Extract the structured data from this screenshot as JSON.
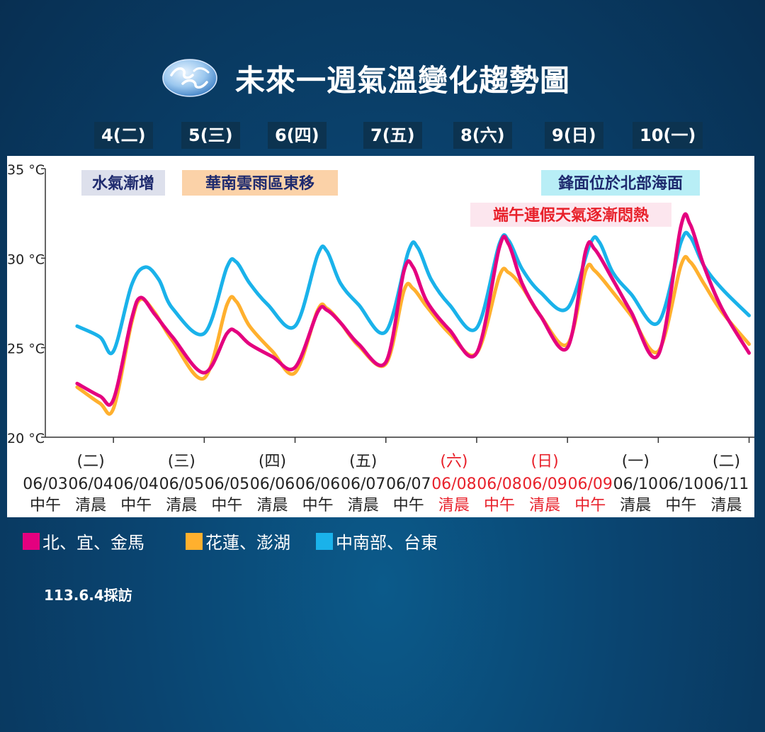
{
  "header": {
    "title": "未來一週氣溫變化趨勢圖"
  },
  "days": [
    "4(二)",
    "5(三)",
    "6(四)",
    "7(五)",
    "8(六)",
    "9(日)",
    "10(一)"
  ],
  "annotations": {
    "moisture": "水氣漸增",
    "south_china": "華南雲雨區東移",
    "front": "鋒面位於北部海面",
    "dragon_boat": "端午連假天氣逐漸悶熱"
  },
  "footnote": "113.6.4採訪",
  "colors": {
    "north": "#e4007f",
    "east": "#ffb02e",
    "south": "#1ab2ea",
    "holiday_text": "#e8202a"
  },
  "chart_data": {
    "type": "line",
    "ylim": [
      20,
      35
    ],
    "yticks": [
      "20 °C",
      "25 °C",
      "30 °C",
      "35 °C"
    ],
    "x_categories": [
      {
        "week": "",
        "date": "06/03",
        "time": "中午",
        "holiday": false
      },
      {
        "week": "(二)",
        "date": "06/04",
        "time": "清晨",
        "holiday": false
      },
      {
        "week": "",
        "date": "06/04",
        "time": "中午",
        "holiday": false
      },
      {
        "week": "(三)",
        "date": "06/05",
        "time": "清晨",
        "holiday": false
      },
      {
        "week": "",
        "date": "06/05",
        "time": "中午",
        "holiday": false
      },
      {
        "week": "(四)",
        "date": "06/06",
        "time": "清晨",
        "holiday": false
      },
      {
        "week": "",
        "date": "06/06",
        "time": "中午",
        "holiday": false
      },
      {
        "week": "(五)",
        "date": "06/07",
        "time": "清晨",
        "holiday": false
      },
      {
        "week": "",
        "date": "06/07",
        "time": "中午",
        "holiday": false
      },
      {
        "week": "(六)",
        "date": "06/08",
        "time": "清晨",
        "holiday": true
      },
      {
        "week": "",
        "date": "06/08",
        "time": "中午",
        "holiday": true
      },
      {
        "week": "(日)",
        "date": "06/09",
        "time": "清晨",
        "holiday": true
      },
      {
        "week": "",
        "date": "06/09",
        "time": "中午",
        "holiday": true
      },
      {
        "week": "(一)",
        "date": "06/10",
        "time": "清晨",
        "holiday": false
      },
      {
        "week": "",
        "date": "06/10",
        "time": "中午",
        "holiday": false
      },
      {
        "week": "(二)",
        "date": "06/11",
        "time": "清晨",
        "holiday": false
      }
    ],
    "series": [
      {
        "name": "中南部、台東",
        "key": "south",
        "points": [
          [
            0.7,
            26.2
          ],
          [
            1.2,
            25.6
          ],
          [
            1.5,
            24.8
          ],
          [
            1.9,
            28.5
          ],
          [
            2.2,
            29.5
          ],
          [
            2.5,
            28.8
          ],
          [
            2.8,
            27.2
          ],
          [
            3.5,
            25.8
          ],
          [
            4.0,
            29.5
          ],
          [
            4.2,
            29.8
          ],
          [
            4.5,
            28.6
          ],
          [
            4.9,
            27.4
          ],
          [
            5.5,
            26.2
          ],
          [
            6.0,
            30.2
          ],
          [
            6.2,
            30.4
          ],
          [
            6.5,
            28.6
          ],
          [
            6.9,
            27.4
          ],
          [
            7.5,
            25.9
          ],
          [
            8.0,
            30.4
          ],
          [
            8.2,
            30.6
          ],
          [
            8.5,
            28.8
          ],
          [
            8.9,
            27.4
          ],
          [
            9.5,
            26.1
          ],
          [
            10.0,
            30.8
          ],
          [
            10.2,
            31.0
          ],
          [
            10.5,
            29.4
          ],
          [
            10.9,
            28.1
          ],
          [
            11.5,
            27.2
          ],
          [
            12.0,
            30.8
          ],
          [
            12.2,
            30.9
          ],
          [
            12.5,
            29.2
          ],
          [
            12.9,
            28.0
          ],
          [
            13.5,
            26.4
          ],
          [
            14.0,
            30.9
          ],
          [
            14.2,
            31.2
          ],
          [
            14.5,
            29.6
          ],
          [
            14.9,
            28.3
          ],
          [
            15.5,
            26.8
          ]
        ]
      },
      {
        "name": "花蓮、澎湖",
        "key": "east",
        "points": [
          [
            0.7,
            22.8
          ],
          [
            1.2,
            21.9
          ],
          [
            1.5,
            21.6
          ],
          [
            1.9,
            26.4
          ],
          [
            2.1,
            27.7
          ],
          [
            2.4,
            27.0
          ],
          [
            2.8,
            25.4
          ],
          [
            3.5,
            23.3
          ],
          [
            4.0,
            27.4
          ],
          [
            4.2,
            27.6
          ],
          [
            4.5,
            26.2
          ],
          [
            5.0,
            24.8
          ],
          [
            5.5,
            23.6
          ],
          [
            6.0,
            27.1
          ],
          [
            6.2,
            27.2
          ],
          [
            6.5,
            26.4
          ],
          [
            6.9,
            25.1
          ],
          [
            7.5,
            24.1
          ],
          [
            7.9,
            28.2
          ],
          [
            8.1,
            28.3
          ],
          [
            8.4,
            27.3
          ],
          [
            8.9,
            25.8
          ],
          [
            9.5,
            24.7
          ],
          [
            10.0,
            29.0
          ],
          [
            10.2,
            29.2
          ],
          [
            10.5,
            28.4
          ],
          [
            10.9,
            26.8
          ],
          [
            11.5,
            25.2
          ],
          [
            11.9,
            29.3
          ],
          [
            12.1,
            29.3
          ],
          [
            12.5,
            28.1
          ],
          [
            12.9,
            26.8
          ],
          [
            13.5,
            24.8
          ],
          [
            14.0,
            29.6
          ],
          [
            14.2,
            29.8
          ],
          [
            14.5,
            28.6
          ],
          [
            14.9,
            27.0
          ],
          [
            15.5,
            25.2
          ]
        ]
      },
      {
        "name": "北、宜、金馬",
        "key": "north",
        "points": [
          [
            0.7,
            23.0
          ],
          [
            1.2,
            22.3
          ],
          [
            1.5,
            22.1
          ],
          [
            1.9,
            26.6
          ],
          [
            2.1,
            27.8
          ],
          [
            2.4,
            26.9
          ],
          [
            2.8,
            25.6
          ],
          [
            3.5,
            23.6
          ],
          [
            4.0,
            25.8
          ],
          [
            4.2,
            25.9
          ],
          [
            4.5,
            25.2
          ],
          [
            5.0,
            24.5
          ],
          [
            5.5,
            23.9
          ],
          [
            6.0,
            27.0
          ],
          [
            6.2,
            27.1
          ],
          [
            6.5,
            26.4
          ],
          [
            6.9,
            25.2
          ],
          [
            7.5,
            24.2
          ],
          [
            7.9,
            29.3
          ],
          [
            8.1,
            29.5
          ],
          [
            8.4,
            27.6
          ],
          [
            8.9,
            26.0
          ],
          [
            9.5,
            24.7
          ],
          [
            10.0,
            30.6
          ],
          [
            10.2,
            30.8
          ],
          [
            10.5,
            28.6
          ],
          [
            10.9,
            26.8
          ],
          [
            11.5,
            25.0
          ],
          [
            11.9,
            30.4
          ],
          [
            12.1,
            30.5
          ],
          [
            12.5,
            28.8
          ],
          [
            12.9,
            27.0
          ],
          [
            13.5,
            24.6
          ],
          [
            14.0,
            31.8
          ],
          [
            14.2,
            31.9
          ],
          [
            14.5,
            29.6
          ],
          [
            14.9,
            27.2
          ],
          [
            15.5,
            24.7
          ]
        ]
      }
    ]
  }
}
